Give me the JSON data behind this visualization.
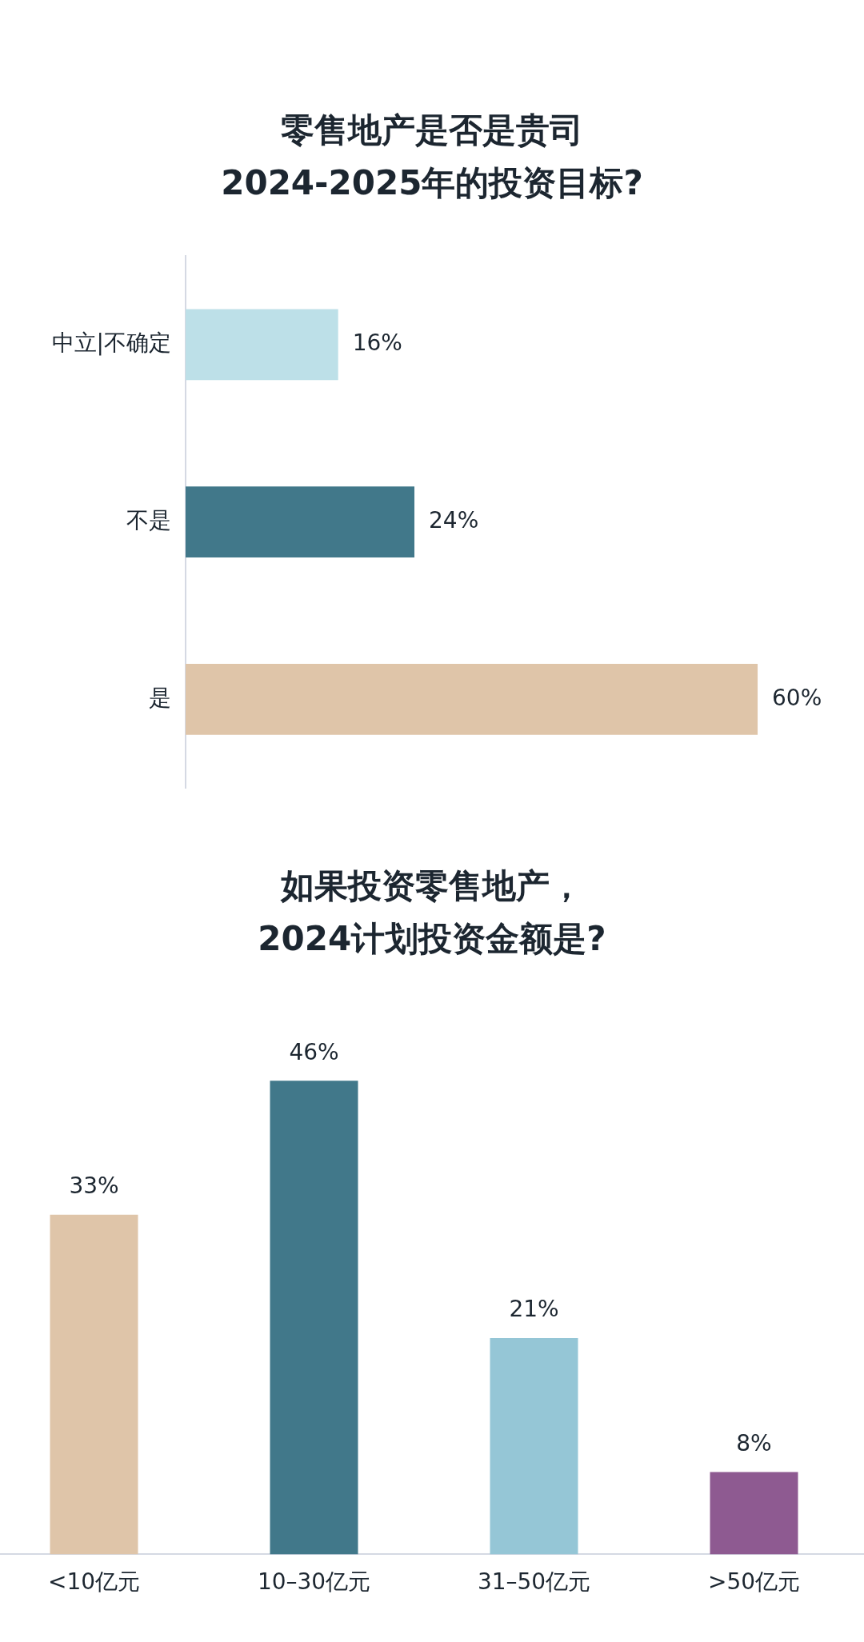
{
  "chart_data": [
    {
      "type": "bar",
      "title": "零售地产是否是贵司\n2024-2025年的投资目标?",
      "orientation": "horizontal",
      "categories": [
        "中立|不确定",
        "不是",
        "是"
      ],
      "values": [
        16,
        24,
        60
      ],
      "colors": [
        "#bde0e8",
        "#41788a",
        "#dfc5a9"
      ],
      "value_labels": [
        "16%",
        "24%",
        "60%"
      ],
      "legend": false
    },
    {
      "type": "bar",
      "title": "如果投资零售地产，\n2024计划投资金额是?",
      "categories": [
        "<10亿元",
        "10–30亿元",
        "31–50亿元",
        ">50亿元"
      ],
      "values": [
        33,
        46,
        21,
        8
      ],
      "colors": [
        "#dfc5a9",
        "#41788a",
        "#95c6d6",
        "#8e5a91"
      ],
      "value_labels": [
        "33%",
        "46%",
        "21%",
        "8%"
      ],
      "legend": false
    }
  ]
}
